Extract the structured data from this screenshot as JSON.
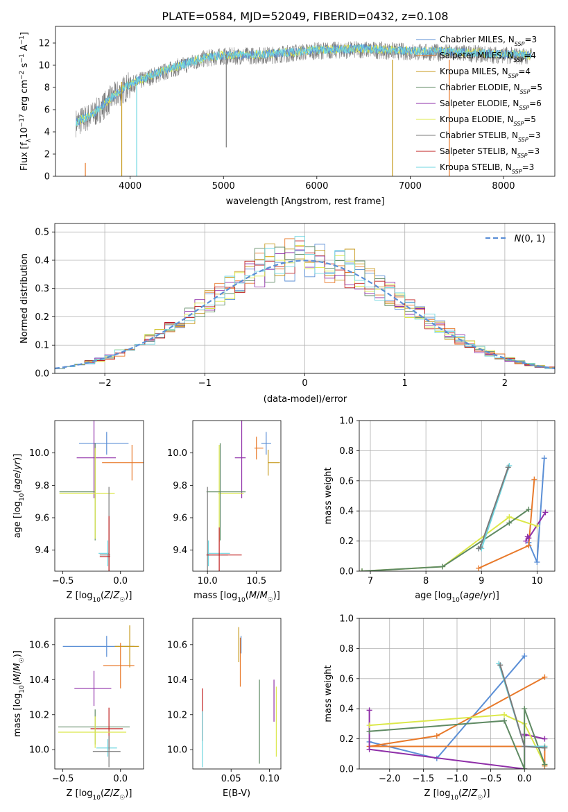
{
  "title": "PLATE=0584, MJD=52049, FIBERID=0432, z=0.108",
  "colors": {
    "Chabrier MILES": "#5b8fd6",
    "Salpeter MILES": "#e8792a",
    "Kroupa MILES": "#c79a1e",
    "Chabrier ELODIE": "#5f8a63",
    "Salpeter ELODIE": "#8f2fa8",
    "Kroupa ELODIE": "#dce84a",
    "Chabrier STELIB": "#7a7a7a",
    "Salpeter STELIB": "#c01f1f",
    "Kroupa STELIB": "#6fd6e0"
  },
  "chart_data": [
    {
      "id": "spectrum",
      "type": "line",
      "xlabel": "wavelength [Angstrom, rest frame]",
      "ylabel": "Flux [f_λ10^-17 erg cm^-2 s^-1 A^-1]",
      "xlim": [
        3200,
        8550
      ],
      "ylim": [
        0,
        13.5
      ],
      "xticks": [
        4000,
        5000,
        6000,
        7000,
        8000
      ],
      "yticks": [
        0,
        2,
        4,
        6,
        8,
        10,
        12
      ],
      "legend_position": "top-right",
      "legend": [
        {
          "label": "Chabrier MILES, N",
          "sub": "SSP",
          "tail": "=3"
        },
        {
          "label": "Salpeter MILES, N",
          "sub": "SSP",
          "tail": "=4"
        },
        {
          "label": "Kroupa MILES, N",
          "sub": "SSP",
          "tail": "=4"
        },
        {
          "label": "Chabrier ELODIE, N",
          "sub": "SSP",
          "tail": "=5"
        },
        {
          "label": "Salpeter ELODIE, N",
          "sub": "SSP",
          "tail": "=6"
        },
        {
          "label": "Kroupa ELODIE, N",
          "sub": "SSP",
          "tail": "=5"
        },
        {
          "label": "Chabrier STELIB, N",
          "sub": "SSP",
          "tail": "=3"
        },
        {
          "label": "Salpeter STELIB, N",
          "sub": "SSP",
          "tail": "=3"
        },
        {
          "label": "Kroupa STELIB, N",
          "sub": "SSP",
          "tail": "=3"
        }
      ],
      "continuum": {
        "x": [
          3420,
          3600,
          3800,
          4000,
          4200,
          4500,
          4800,
          5000,
          5500,
          6000,
          6500,
          7000,
          7500,
          8000,
          8300
        ],
        "y": [
          4.8,
          5.5,
          7.0,
          8.2,
          8.9,
          9.8,
          10.6,
          10.8,
          10.9,
          11.3,
          11.4,
          11.2,
          11.1,
          10.9,
          10.8
        ]
      },
      "spikes": [
        {
          "x": 3520,
          "y_min": 0,
          "y_max": 1.2
        },
        {
          "x": 3910,
          "y_min": 0,
          "y_max": 8.5
        },
        {
          "x": 4070,
          "y_min": 0,
          "y_max": 9.0
        },
        {
          "x": 5030,
          "y_min": 2.6,
          "y_max": 11.0
        },
        {
          "x": 6810,
          "y_min": 0,
          "y_max": 10.5
        },
        {
          "x": 7420,
          "y_min": 0,
          "y_max": 10.5
        }
      ]
    },
    {
      "id": "residuals",
      "type": "histogram",
      "xlabel": "(data-model)/error",
      "ylabel": "Normed distribution",
      "xlim": [
        -2.5,
        2.5
      ],
      "ylim": [
        0,
        0.53
      ],
      "xticks": [
        -2,
        -1,
        0,
        1,
        2
      ],
      "yticks": [
        0.0,
        0.1,
        0.2,
        0.3,
        0.4,
        0.5
      ],
      "grid": true,
      "legend_position": "top-right",
      "normal_curve_label": "N(0,1)",
      "bin_width": 0.1,
      "peak_values": [
        0.51,
        0.49,
        0.49,
        0.47,
        0.44,
        0.43
      ],
      "tail_value_at_x_2.5": 0.02
    },
    {
      "id": "age_vs_Z",
      "type": "errorbar",
      "xlabel": "Z [log10(Z/Z☉)]",
      "ylabel": "age  [log10(age/yr)]",
      "xlim": [
        -0.57,
        0.2
      ],
      "ylim": [
        9.27,
        10.2
      ],
      "xticks": [
        -0.5,
        0.0
      ],
      "yticks": [
        9.4,
        9.6,
        9.8,
        10.0
      ],
      "points": [
        {
          "model": "Chabrier MILES",
          "x": -0.12,
          "xerr_lo": 0.24,
          "xerr_hi": 0.19,
          "y": 10.06,
          "yerr": 0.07
        },
        {
          "model": "Salpeter MILES",
          "x": 0.1,
          "xerr_lo": 0.26,
          "xerr_hi": 0.17,
          "y": 9.94,
          "yerr": 0.11
        },
        {
          "model": "Salpeter ELODIE",
          "x": -0.23,
          "xerr_lo": 0.15,
          "xerr_hi": 0.19,
          "y": 9.97,
          "yerr": 0.25
        },
        {
          "model": "Chabrier ELODIE",
          "x": -0.22,
          "xerr_lo": 0.31,
          "xerr_hi": 0.0,
          "y": 9.76,
          "yerr": 0.3
        },
        {
          "model": "Kroupa ELODIE",
          "x": -0.22,
          "xerr_lo": 0.31,
          "xerr_hi": 0.17,
          "y": 9.75,
          "yerr": 0.28
        },
        {
          "model": "Kroupa STELIB",
          "x": -0.11,
          "xerr_lo": 0.08,
          "xerr_hi": 0.01,
          "y": 9.38,
          "yerr": 0.08
        },
        {
          "model": "Chabrier STELIB",
          "x": -0.1,
          "xerr_lo": 0.08,
          "xerr_hi": 0.01,
          "y": 9.37,
          "yerr": 0.42
        },
        {
          "model": "Salpeter STELIB",
          "x": -0.1,
          "xerr_lo": 0.08,
          "xerr_hi": 0.01,
          "y": 9.36,
          "yerr": 0.25
        }
      ]
    },
    {
      "id": "age_vs_mass",
      "type": "errorbar",
      "xlabel": "mass [log10(M/M☉)]",
      "ylabel": "",
      "xlim": [
        9.85,
        10.75
      ],
      "ylim": [
        9.27,
        10.2
      ],
      "xticks": [
        10.0,
        10.5
      ],
      "yticks": [
        9.4,
        9.6,
        9.8,
        10.0
      ],
      "points": [
        {
          "model": "Chabrier MILES",
          "x": 10.6,
          "xerr_lo": 0.05,
          "xerr_hi": 0.05,
          "y": 10.06,
          "yerr": 0.07
        },
        {
          "model": "Salpeter MILES",
          "x": 10.5,
          "xerr_lo": 0.02,
          "xerr_hi": 0.07,
          "y": 10.03,
          "yerr": 0.07
        },
        {
          "model": "Kroupa MILES",
          "x": 10.62,
          "xerr_lo": 0.0,
          "xerr_hi": 0.12,
          "y": 9.94,
          "yerr": 0.08
        },
        {
          "model": "Salpeter ELODIE",
          "x": 10.35,
          "xerr_lo": 0.07,
          "xerr_hi": 0.04,
          "y": 9.97,
          "yerr": 0.25
        },
        {
          "model": "Kroupa ELODIE",
          "x": 10.12,
          "xerr_lo": 0.01,
          "xerr_hi": 0.25,
          "y": 9.75,
          "yerr": 0.3
        },
        {
          "model": "Chabrier ELODIE",
          "x": 10.13,
          "xerr_lo": 0.14,
          "xerr_hi": 0.26,
          "y": 9.76,
          "yerr": 0.3
        },
        {
          "model": "Kroupa STELIB",
          "x": 10.01,
          "xerr_lo": 0.01,
          "xerr_hi": 0.22,
          "y": 9.38,
          "yerr": 0.08
        },
        {
          "model": "Chabrier STELIB",
          "x": 10.0,
          "xerr_lo": 0.01,
          "xerr_hi": 0.21,
          "y": 9.37,
          "yerr": 0.42
        },
        {
          "model": "Salpeter STELIB",
          "x": 10.12,
          "xerr_lo": 0.13,
          "xerr_hi": 0.23,
          "y": 9.37,
          "yerr": 0.17
        }
      ]
    },
    {
      "id": "weight_vs_age",
      "type": "line",
      "xlabel": "age  [log10(age/yr)]",
      "ylabel": "mass weight",
      "xlim": [
        6.8,
        10.32
      ],
      "ylim": [
        0,
        1
      ],
      "xticks": [
        7,
        8,
        9,
        10
      ],
      "yticks": [
        0.0,
        0.2,
        0.4,
        0.6,
        0.8,
        1.0
      ],
      "grid": true,
      "series": [
        {
          "model": "Chabrier MILES",
          "x": [
            10.13,
            10.0,
            9.85
          ],
          "y": [
            0.75,
            0.06,
            0.19
          ]
        },
        {
          "model": "Salpeter MILES",
          "x": [
            9.95,
            9.85,
            8.95
          ],
          "y": [
            0.61,
            0.17,
            0.02
          ]
        },
        {
          "model": "Salpeter ELODIE",
          "x": [
            10.15,
            9.85,
            9.83,
            9.8
          ],
          "y": [
            0.39,
            0.22,
            0.23,
            0.2
          ]
        },
        {
          "model": "Kroupa ELODIE",
          "x": [
            10.0,
            9.5,
            8.3,
            6.85
          ],
          "y": [
            0.3,
            0.36,
            0.03,
            0.0
          ]
        },
        {
          "model": "Chabrier ELODIE",
          "x": [
            9.85,
            9.5,
            8.3,
            6.85
          ],
          "y": [
            0.41,
            0.32,
            0.03,
            0.0
          ]
        },
        {
          "model": "Kroupa STELIB",
          "x": [
            9.5,
            9.0,
            8.95
          ],
          "y": [
            0.7,
            0.15,
            0.15
          ]
        },
        {
          "model": "Chabrier STELIB",
          "x": [
            9.48,
            8.98,
            8.95
          ],
          "y": [
            0.69,
            0.16,
            0.15
          ]
        }
      ]
    },
    {
      "id": "mass_vs_Z",
      "type": "errorbar",
      "xlabel": "Z [log10(Z/Z☉)]",
      "ylabel": "mass [log10(M/M☉)]",
      "xlim": [
        -0.57,
        0.2
      ],
      "ylim": [
        9.89,
        10.75
      ],
      "xticks": [
        -0.5,
        0.0
      ],
      "yticks": [
        10.0,
        10.2,
        10.4,
        10.6
      ],
      "points": [
        {
          "model": "Chabrier MILES",
          "x": -0.12,
          "xerr_lo": 0.38,
          "xerr_hi": 0.24,
          "y": 10.59,
          "yerr": 0.06
        },
        {
          "model": "Kroupa MILES",
          "x": 0.08,
          "xerr_lo": 0.13,
          "xerr_hi": 0.08,
          "y": 10.59,
          "yerr": 0.12
        },
        {
          "model": "Salpeter MILES",
          "x": 0.0,
          "xerr_lo": 0.15,
          "xerr_hi": 0.12,
          "y": 10.48,
          "yerr": 0.13
        },
        {
          "model": "Salpeter ELODIE",
          "x": -0.23,
          "xerr_lo": 0.17,
          "xerr_hi": 0.15,
          "y": 10.35,
          "yerr": 0.1
        },
        {
          "model": "Chabrier ELODIE",
          "x": -0.22,
          "xerr_lo": 0.32,
          "xerr_hi": 0.3,
          "y": 10.13,
          "yerr": 0.1
        },
        {
          "model": "Salpeter STELIB",
          "x": -0.1,
          "xerr_lo": 0.16,
          "xerr_hi": 0.12,
          "y": 10.12,
          "yerr": 0.12
        },
        {
          "model": "Kroupa ELODIE",
          "x": -0.22,
          "xerr_lo": 0.32,
          "xerr_hi": 0.27,
          "y": 10.1,
          "yerr": 0.09
        },
        {
          "model": "Kroupa STELIB",
          "x": -0.11,
          "xerr_lo": 0.1,
          "xerr_hi": 0.08,
          "y": 10.01,
          "yerr": 0.05
        },
        {
          "model": "Chabrier STELIB",
          "x": -0.1,
          "xerr_lo": 0.14,
          "xerr_hi": 0.1,
          "y": 9.99,
          "yerr": 0.09
        }
      ]
    },
    {
      "id": "mass_vs_ebv",
      "type": "errorbar",
      "xlabel": "E(B-V)",
      "ylabel": "",
      "xlim": [
        0.0,
        0.115
      ],
      "ylim": [
        9.89,
        10.75
      ],
      "xticks": [
        0.05,
        0.1
      ],
      "yticks": [
        10.0,
        10.2,
        10.4,
        10.6
      ],
      "points": [
        {
          "model": "Kroupa MILES",
          "x": 0.06,
          "y": 10.6,
          "yerr": 0.1
        },
        {
          "model": "Chabrier MILES",
          "x": 0.063,
          "y": 10.6,
          "yerr": 0.05
        },
        {
          "model": "Salpeter MILES",
          "x": 0.062,
          "y": 10.5,
          "yerr": 0.14
        },
        {
          "model": "Salpeter STELIB",
          "x": 0.0125,
          "y": 10.2,
          "yerr": 0.15
        },
        {
          "model": "Kroupa STELIB",
          "x": 0.0125,
          "y": 10.06,
          "yerr": 0.16
        },
        {
          "model": "Chabrier ELODIE",
          "x": 0.087,
          "y": 10.16,
          "yerr": 0.24
        },
        {
          "model": "Salpeter ELODIE",
          "x": 0.106,
          "y": 10.28,
          "yerr": 0.12
        },
        {
          "model": "Kroupa ELODIE",
          "x": 0.109,
          "y": 10.16,
          "yerr": 0.2
        }
      ]
    },
    {
      "id": "weight_vs_Z",
      "type": "line",
      "xlabel": "Z [log10(Z/Z☉)]",
      "ylabel": "mass weight",
      "xlim": [
        -2.45,
        0.45
      ],
      "ylim": [
        0,
        1
      ],
      "xticks": [
        -2.0,
        -1.5,
        -1.0,
        -0.5,
        0.0
      ],
      "yticks": [
        0.0,
        0.2,
        0.4,
        0.6,
        0.8,
        1.0
      ],
      "grid": true,
      "series": [
        {
          "model": "Chabrier MILES",
          "x": [
            0.0,
            -1.3,
            -2.3
          ],
          "y": [
            0.75,
            0.07,
            0.18
          ]
        },
        {
          "model": "Salpeter MILES",
          "x": [
            0.3,
            -1.3,
            -2.3,
            0.3,
            0.3
          ],
          "y": [
            0.61,
            0.22,
            0.15,
            0.15,
            0.02
          ]
        },
        {
          "model": "Salpeter ELODIE",
          "x": [
            -2.3,
            -2.3,
            0.0,
            0.0,
            0.0,
            0.3
          ],
          "y": [
            0.39,
            0.13,
            0.0,
            0.22,
            0.23,
            0.2
          ]
        },
        {
          "model": "Kroupa ELODIE",
          "x": [
            -2.3,
            -0.3,
            0.0,
            0.3
          ],
          "y": [
            0.29,
            0.36,
            0.3,
            0.03
          ]
        },
        {
          "model": "Chabrier ELODIE",
          "x": [
            -2.3,
            -0.3,
            0.0,
            0.0,
            0.3
          ],
          "y": [
            0.25,
            0.32,
            0.0,
            0.4,
            0.03
          ]
        },
        {
          "model": "Kroupa STELIB",
          "x": [
            -0.38,
            0.0,
            0.3
          ],
          "y": [
            0.7,
            0.15,
            0.15
          ]
        },
        {
          "model": "Chabrier STELIB",
          "x": [
            -0.36,
            0.0,
            0.3
          ],
          "y": [
            0.69,
            0.15,
            0.14
          ]
        }
      ]
    }
  ]
}
